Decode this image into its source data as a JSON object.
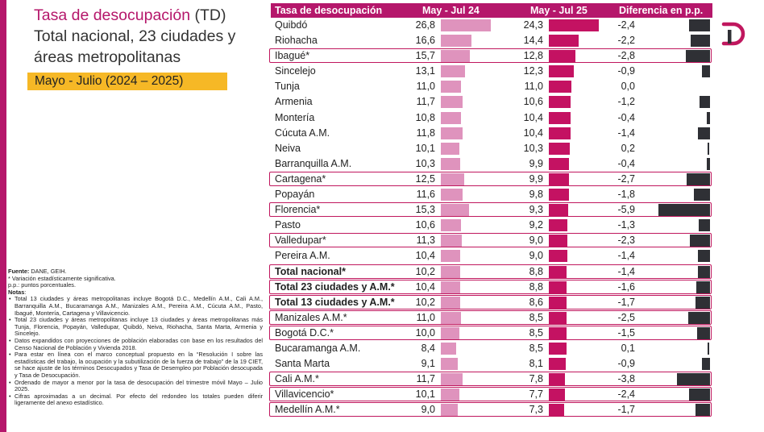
{
  "header": {
    "title_accent": "Tasa de desocupación",
    "title_rest": " (TD)",
    "title_line2": "Total nacional, 23 ciudades y",
    "title_line3": "áreas metropolitanas",
    "period": "Mayo - Julio (2024 – 2025)"
  },
  "notes": {
    "source_label": "Fuente:",
    "source": " DANE, GEIH.",
    "line1": "* Variación estadísticamente significativa.",
    "line2": "p.p.: puntos porcentuales.",
    "notes_label": "Notas",
    "notes_colon": ":",
    "items": [
      "Total 13 ciudades y áreas metropolitanas incluye Bogotá D.C., Medellín A.M., Cali A.M., Barranquilla A.M., Bucaramanga A.M., Manizales A.M., Pereira A.M., Cúcuta A.M., Pasto, Ibagué, Montería, Cartagena y Villavicencio.",
      "Total 23 ciudades y áreas metropolitanas incluye 13 ciudades y áreas metropolitanas más Tunja, Florencia, Popayán, Valledupar, Quibdó, Neiva, Riohacha, Santa Marta, Armenia y Sincelejo.",
      "Datos expandidos con proyecciones de población elaboradas con base en los resultados del Censo Nacional de Población y Vivienda 2018.",
      "Para estar en línea con el marco conceptual propuesto en la “Resolución I sobre las estadísticas del trabajo, la ocupación y la subutilización de la fuerza de trabajo” de la 19 CIET, se hace ajuste de los términos Desocupados y Tasa de Desempleo por Población desocupada y Tasa de Desocupación.",
      "Ordenado de mayor a menor por la tasa de desocupación del trimestre móvil Mayo – Julio 2025.",
      "Cifras aproximadas a un decimal. Por efecto del redondeo los totales pueden diferir ligeramente del anexo estadístico."
    ]
  },
  "chart_data": {
    "type": "table",
    "columns": [
      "Tasa de desocupación",
      "May - Jul 24",
      "May - Jul 25",
      "Diferencia en p.p."
    ],
    "rows": [
      {
        "city": "Quibdó",
        "v24": "26,8",
        "v25": "24,3",
        "diff": "-2,4",
        "highlight": false,
        "bold": false
      },
      {
        "city": "Riohacha",
        "v24": "16,6",
        "v25": "14,4",
        "diff": "-2,2",
        "highlight": false,
        "bold": false
      },
      {
        "city": "Ibagué*",
        "v24": "15,7",
        "v25": "12,8",
        "diff": "-2,8",
        "highlight": true,
        "bold": false
      },
      {
        "city": "Sincelejo",
        "v24": "13,1",
        "v25": "12,3",
        "diff": "-0,9",
        "highlight": false,
        "bold": false
      },
      {
        "city": "Tunja",
        "v24": "11,0",
        "v25": "11,0",
        "diff": "0,0",
        "highlight": false,
        "bold": false
      },
      {
        "city": "Armenia",
        "v24": "11,7",
        "v25": "10,6",
        "diff": "-1,2",
        "highlight": false,
        "bold": false
      },
      {
        "city": "Montería",
        "v24": "10,8",
        "v25": "10,4",
        "diff": "-0,4",
        "highlight": false,
        "bold": false
      },
      {
        "city": "Cúcuta A.M.",
        "v24": "11,8",
        "v25": "10,4",
        "diff": "-1,4",
        "highlight": false,
        "bold": false
      },
      {
        "city": "Neiva",
        "v24": "10,1",
        "v25": "10,3",
        "diff": "0,2",
        "highlight": false,
        "bold": false
      },
      {
        "city": "Barranquilla A.M.",
        "v24": "10,3",
        "v25": "9,9",
        "diff": "-0,4",
        "highlight": false,
        "bold": false
      },
      {
        "city": "Cartagena*",
        "v24": "12,5",
        "v25": "9,9",
        "diff": "-2,7",
        "highlight": true,
        "bold": false
      },
      {
        "city": "Popayán",
        "v24": "11,6",
        "v25": "9,8",
        "diff": "-1,8",
        "highlight": false,
        "bold": false
      },
      {
        "city": "Florencia*",
        "v24": "15,3",
        "v25": "9,3",
        "diff": "-5,9",
        "highlight": true,
        "bold": false
      },
      {
        "city": "Pasto",
        "v24": "10,6",
        "v25": "9,2",
        "diff": "-1,3",
        "highlight": false,
        "bold": false
      },
      {
        "city": "Valledupar*",
        "v24": "11,3",
        "v25": "9,0",
        "diff": "-2,3",
        "highlight": true,
        "bold": false
      },
      {
        "city": "Pereira A.M.",
        "v24": "10,4",
        "v25": "9,0",
        "diff": "-1,4",
        "highlight": false,
        "bold": false
      },
      {
        "city": "Total nacional*",
        "v24": "10,2",
        "v25": "8,8",
        "diff": "-1,4",
        "highlight": true,
        "bold": true
      },
      {
        "city": "Total 23 ciudades y A.M.*",
        "v24": "10,4",
        "v25": "8,8",
        "diff": "-1,6",
        "highlight": true,
        "bold": true
      },
      {
        "city": "Total 13 ciudades y A.M.*",
        "v24": "10,2",
        "v25": "8,6",
        "diff": "-1,7",
        "highlight": true,
        "bold": true
      },
      {
        "city": "Manizales A.M.*",
        "v24": "11,0",
        "v25": "8,5",
        "diff": "-2,5",
        "highlight": true,
        "bold": false
      },
      {
        "city": "Bogotá D.C.*",
        "v24": "10,0",
        "v25": "8,5",
        "diff": "-1,5",
        "highlight": true,
        "bold": false
      },
      {
        "city": "Bucaramanga A.M.",
        "v24": "8,4",
        "v25": "8,5",
        "diff": "0,1",
        "highlight": false,
        "bold": false
      },
      {
        "city": "Santa Marta",
        "v24": "9,1",
        "v25": "8,1",
        "diff": "-0,9",
        "highlight": false,
        "bold": false
      },
      {
        "city": "Cali A.M.*",
        "v24": "11,7",
        "v25": "7,8",
        "diff": "-3,8",
        "highlight": true,
        "bold": false
      },
      {
        "city": "Villavicencio*",
        "v24": "10,1",
        "v25": "7,7",
        "diff": "-2,4",
        "highlight": true,
        "bold": false
      },
      {
        "city": "Medellín A.M.*",
        "v24": "9,0",
        "v25": "7,3",
        "diff": "-1,7",
        "highlight": true,
        "bold": false
      }
    ]
  },
  "colors": {
    "accent": "#b5176b",
    "bar_2024": "#df93bd",
    "bar_2025": "#c41262",
    "bar_diff": "#2f3035",
    "period_bg": "#f6b826"
  },
  "logo": {
    "icon": "dane-d-logo-icon"
  }
}
